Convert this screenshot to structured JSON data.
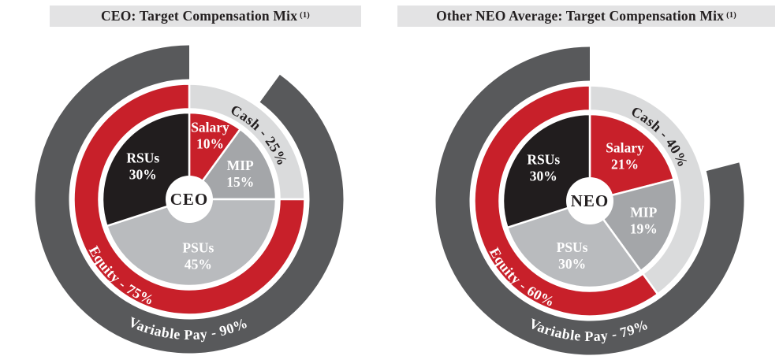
{
  "page": {
    "background_color": "#ffffff",
    "title_bar_color": "#e3e3e4"
  },
  "chart_data": [
    {
      "type": "sunburst-donut",
      "title": "CEO: Target Compensation Mix",
      "title_superscript": "(1)",
      "center_label": "CEO",
      "inner_slices": [
        {
          "label": "Salary",
          "value": 10,
          "display": "Salary 10%",
          "color": "#c8202a",
          "text_color": "#ffffff"
        },
        {
          "label": "MIP",
          "value": 15,
          "display": "MIP 15%",
          "color": "#a4a6a9",
          "text_color": "#ffffff"
        },
        {
          "label": "PSUs",
          "value": 45,
          "display": "PSUs 45%",
          "color": "#b9bbbe",
          "text_color": "#ffffff"
        },
        {
          "label": "RSUs",
          "value": 30,
          "display": "RSUs 30%",
          "color": "#211d1e",
          "text_color": "#ffffff"
        }
      ],
      "middle_ring": [
        {
          "label": "Cash",
          "value": 25,
          "display": "Cash - 25%",
          "color": "#dadbdc",
          "text_color": "#231f20"
        },
        {
          "label": "Equity",
          "value": 75,
          "display": "Equity - 75%",
          "color": "#c8202a",
          "text_color": "#ffffff"
        }
      ],
      "outer_ring": {
        "label": "Variable Pay",
        "value": 90,
        "display": "Variable Pay - 90%",
        "fixed_pay_gap_value": 10,
        "color": "#58595b",
        "text_color": "#ffffff"
      }
    },
    {
      "type": "sunburst-donut",
      "title": "Other NEO Average: Target Compensation Mix",
      "title_superscript": "(1)",
      "center_label": "NEO",
      "inner_slices": [
        {
          "label": "Salary",
          "value": 21,
          "display": "Salary 21%",
          "color": "#c8202a",
          "text_color": "#ffffff"
        },
        {
          "label": "MIP",
          "value": 19,
          "display": "MIP 19%",
          "color": "#a4a6a9",
          "text_color": "#ffffff"
        },
        {
          "label": "PSUs",
          "value": 30,
          "display": "PSUs 30%",
          "color": "#b9bbbe",
          "text_color": "#ffffff"
        },
        {
          "label": "RSUs",
          "value": 30,
          "display": "RSUs 30%",
          "color": "#211d1e",
          "text_color": "#ffffff"
        }
      ],
      "middle_ring": [
        {
          "label": "Cash",
          "value": 40,
          "display": "Cash - 40%",
          "color": "#dadbdc",
          "text_color": "#231f20"
        },
        {
          "label": "Equity",
          "value": 60,
          "display": "Equity - 60%",
          "color": "#c8202a",
          "text_color": "#ffffff"
        }
      ],
      "outer_ring": {
        "label": "Variable Pay",
        "value": 79,
        "display": "Variable Pay - 79%",
        "fixed_pay_gap_value": 21,
        "color": "#58595b",
        "text_color": "#ffffff"
      }
    }
  ]
}
